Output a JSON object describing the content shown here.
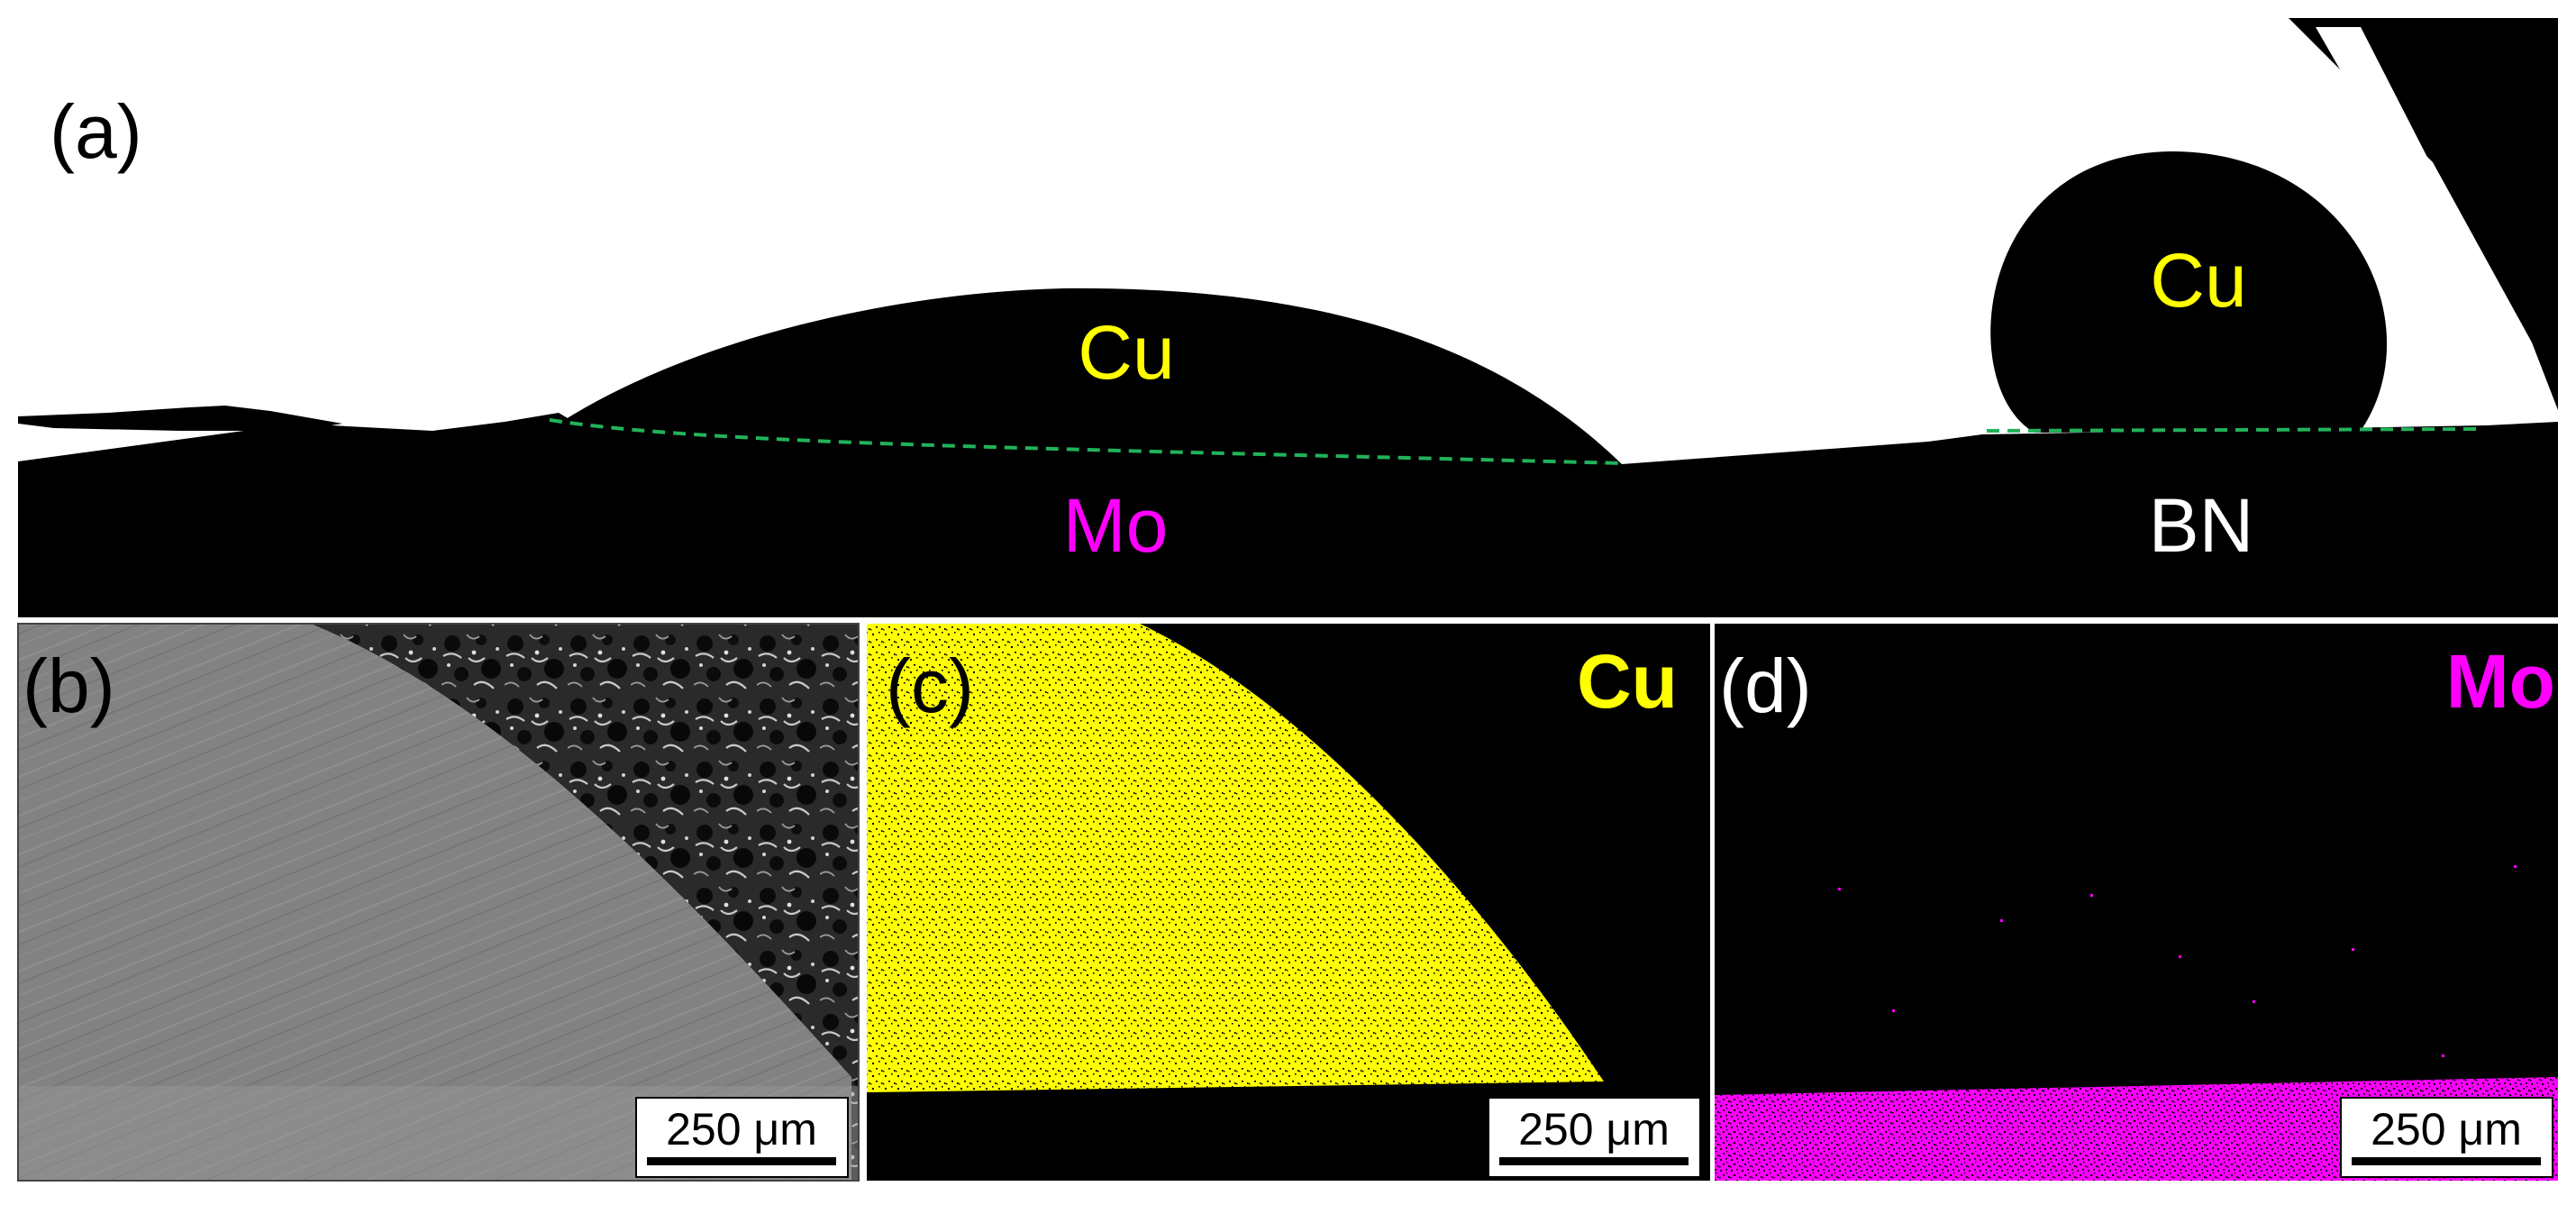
{
  "figure": {
    "panel_a": {
      "label": "(a)",
      "left_drop": {
        "droplet": "Cu",
        "substrate": "Mo"
      },
      "right_drop": {
        "droplet": "Cu",
        "substrate": "BN"
      }
    },
    "panel_b": {
      "label": "(b)",
      "scale_bar": "250 μm"
    },
    "panel_c": {
      "label": "(c)",
      "element": "Cu",
      "scale_bar": "250 μm"
    },
    "panel_d": {
      "label": "(d)",
      "element": "Mo",
      "scale_bar": "250 μm"
    }
  },
  "colors": {
    "cu": "#ffff00",
    "mo": "#ff00ff",
    "interface_line": "#22b35a",
    "sem_gray": "#7f7f7f"
  }
}
